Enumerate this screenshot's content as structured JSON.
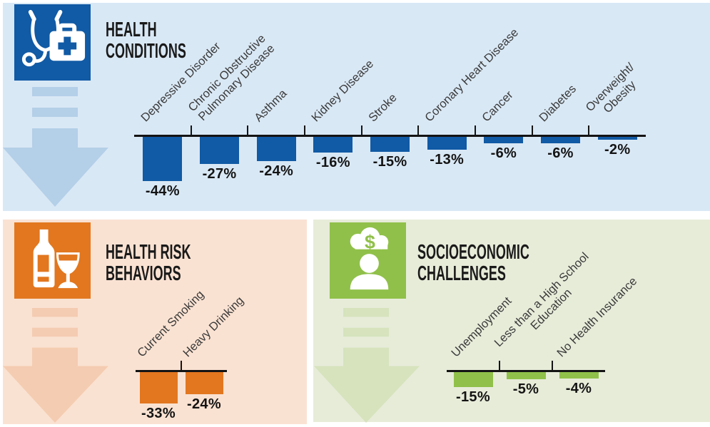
{
  "infographic": {
    "panels": [
      {
        "id": "health-conditions",
        "title_lines": [
          "HEALTH",
          "CONDITIONS"
        ],
        "icon": "medical-kit-stethoscope-icon",
        "accent_color": "#115aa5",
        "background_color": "#d9e8f5",
        "arrow_color": "#b4cfe8"
      },
      {
        "id": "health-risk-behaviors",
        "title_lines": [
          "HEALTH RISK",
          "BEHAVIORS"
        ],
        "icon": "wine-bottle-glass-icon",
        "accent_color": "#e2771f",
        "background_color": "#fae2d2",
        "arrow_color": "#f4ccb1"
      },
      {
        "id": "socioeconomic-challenges",
        "title_lines": [
          "SOCIOECONOMIC",
          "CHALLENGES"
        ],
        "icon": "person-money-cloud-icon",
        "accent_color": "#90c04a",
        "background_color": "#e7ecd9",
        "arrow_color": "#d6e3bd"
      }
    ]
  },
  "chart_data": [
    {
      "type": "bar",
      "title": "HEALTH CONDITIONS",
      "categories": [
        "Depressive Disorder",
        "Chronic Obstructive Pulmonary Disease",
        "Asthma",
        "Kidney Disease",
        "Stroke",
        "Coronary Heart Disease",
        "Cancer",
        "Diabetes",
        "Overweight/Obesity"
      ],
      "category_lines": [
        [
          "Depressive Disorder"
        ],
        [
          "Chronic Obstructive",
          "Pulmonary Disease"
        ],
        [
          "Asthma"
        ],
        [
          "Kidney Disease"
        ],
        [
          "Stroke"
        ],
        [
          "Coronary Heart Disease"
        ],
        [
          "Cancer"
        ],
        [
          "Diabetes"
        ],
        [
          "Overweight/",
          "Obesity"
        ]
      ],
      "values": [
        -44,
        -27,
        -24,
        -16,
        -15,
        -13,
        -6,
        -6,
        -2
      ],
      "value_labels": [
        "-44%",
        "-27%",
        "-24%",
        "-16%",
        "-15%",
        "-13%",
        "-6%",
        "-6%",
        "-2%"
      ],
      "bar_color": "#115aa5",
      "baseline": 0,
      "bar_direction": "down",
      "ylim": [
        -50,
        0
      ],
      "grid": false,
      "legend": false,
      "category_label_rotation_deg": 45
    },
    {
      "type": "bar",
      "title": "HEALTH RISK BEHAVIORS",
      "categories": [
        "Current Smoking",
        "Heavy Drinking"
      ],
      "category_lines": [
        [
          "Current Smoking"
        ],
        [
          "Heavy Drinking"
        ]
      ],
      "values": [
        -33,
        -24
      ],
      "value_labels": [
        "-33%",
        "-24%"
      ],
      "bar_color": "#e2771f",
      "baseline": 0,
      "bar_direction": "down",
      "ylim": [
        -40,
        0
      ],
      "grid": false,
      "legend": false,
      "category_label_rotation_deg": 45
    },
    {
      "type": "bar",
      "title": "SOCIOECONOMIC CHALLENGES",
      "categories": [
        "Unemployment",
        "Less than a High School Education",
        "No Health Insurance"
      ],
      "category_lines": [
        [
          "Unemployment"
        ],
        [
          "Less than a High School",
          "Education"
        ],
        [
          "No Health Insurance"
        ]
      ],
      "values": [
        -15,
        -5,
        -4
      ],
      "value_labels": [
        "-15%",
        "-5%",
        "-4%"
      ],
      "bar_color": "#90c04a",
      "baseline": 0,
      "bar_direction": "down",
      "ylim": [
        -20,
        0
      ],
      "grid": false,
      "legend": false,
      "category_label_rotation_deg": 45
    }
  ]
}
